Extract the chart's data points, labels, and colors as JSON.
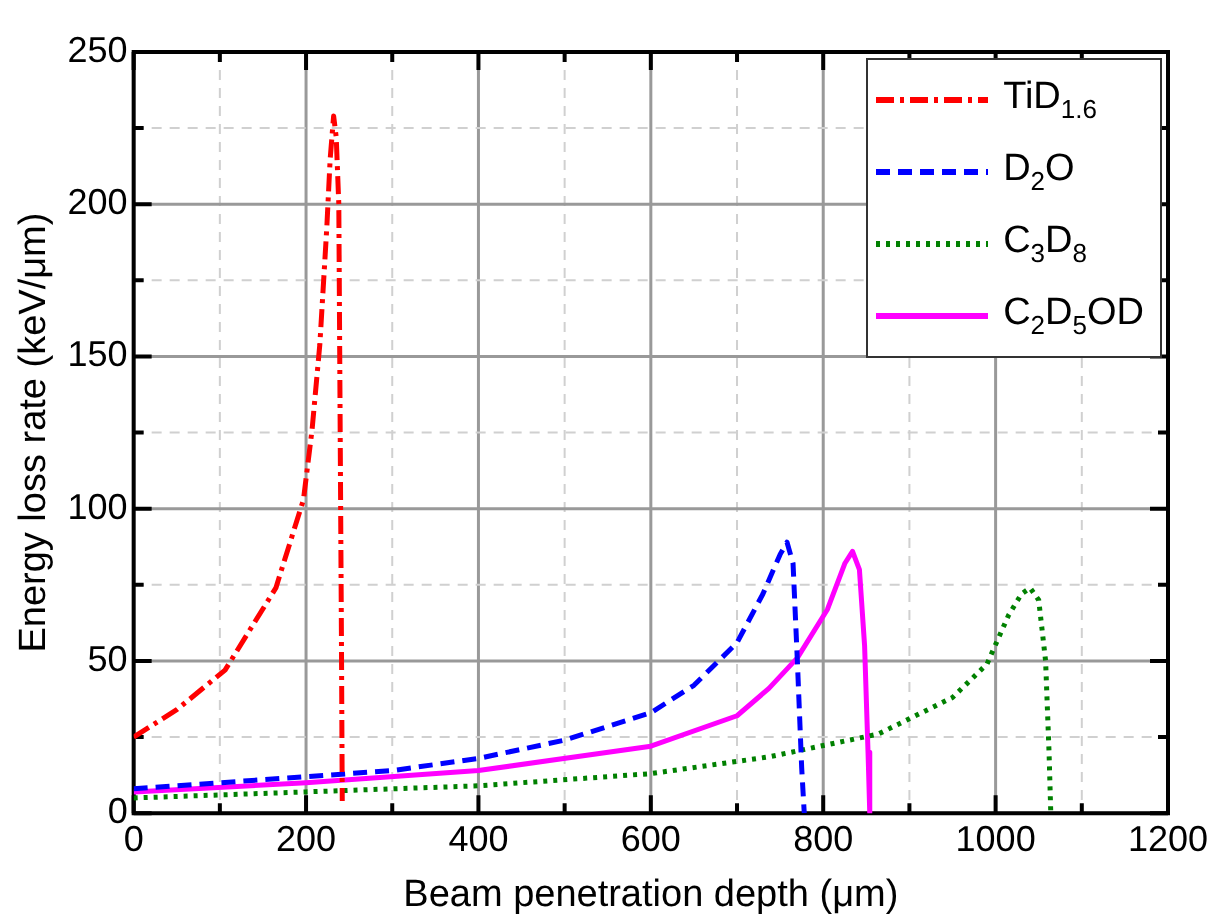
{
  "chart_data": {
    "type": "line",
    "xlabel": "Beam penetration depth (μm)",
    "ylabel": "Energy loss rate (keV/μm)",
    "xlim": [
      0,
      1200
    ],
    "ylim": [
      0,
      250
    ],
    "xticks": [
      0,
      {
        "value": 100,
        "label": null
      },
      200,
      {
        "value": 300,
        "label": null
      },
      400,
      {
        "value": 500,
        "label": null
      },
      600,
      {
        "value": 700,
        "label": null
      },
      800,
      {
        "value": 900,
        "label": null
      },
      1000,
      {
        "value": 1100,
        "label": null
      },
      1200
    ],
    "yticks": [
      0,
      {
        "value": 25,
        "label": null
      },
      50,
      {
        "value": 75,
        "label": null
      },
      100,
      {
        "value": 125,
        "label": null
      },
      150,
      {
        "value": 175,
        "label": null
      },
      200,
      {
        "value": 225,
        "label": null
      },
      250
    ],
    "grid": true,
    "legend": "top right",
    "marker": "none",
    "series": [
      {
        "name": "TiD$_{1.6}$",
        "color": "#ff0000",
        "line_style": "dashdot",
        "x": [
          0,
          50,
          106,
          165,
          197,
          207,
          216,
          224,
          228,
          232,
          235,
          238,
          241,
          242
        ],
        "values": [
          25,
          34,
          47,
          74,
          103,
          126,
          154,
          192,
          215,
          229,
          222,
          200,
          60,
          4
        ]
      },
      {
        "name": "D$_{2}$O",
        "color": "#0000ff",
        "line_style": "dashed",
        "x": [
          0,
          100,
          200,
          300,
          400,
          500,
          600,
          650,
          700,
          730,
          750,
          758,
          765,
          770,
          775,
          778
        ],
        "values": [
          8,
          10,
          12,
          14,
          18,
          24,
          33,
          42,
          56,
          72,
          85,
          89,
          82,
          50,
          15,
          0
        ]
      },
      {
        "name": "C$_{3}$D$_{8}$",
        "color": "#008000",
        "line_style": "dotted",
        "x": [
          0,
          200,
          400,
          600,
          737,
          864,
          950,
          990,
          1015,
          1030,
          1040,
          1050,
          1058,
          1062,
          1064
        ],
        "values": [
          5,
          7,
          9,
          13,
          18.5,
          26,
          38,
          49,
          65,
          72,
          74,
          70,
          50,
          20,
          0
        ]
      },
      {
        "name": "C$_{2}$D$_{5}$OD",
        "color": "#ff00ff",
        "line_style": "solid",
        "x": [
          0,
          200,
          400,
          600,
          700,
          737,
          770,
          805,
          825,
          834,
          842,
          848,
          852,
          854
        ],
        "values": [
          7,
          10,
          14,
          22,
          32,
          41,
          51,
          67,
          82,
          86,
          80,
          55,
          20,
          0
        ]
      }
    ]
  }
}
